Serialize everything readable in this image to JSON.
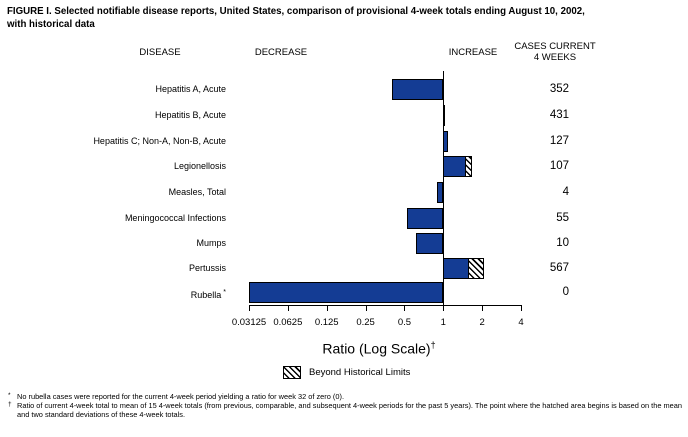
{
  "title": {
    "line1": "FIGURE I. Selected notifiable disease reports, United States, comparison of provisional 4-week totals ending August 10, 2002,",
    "line2": "with historical data"
  },
  "column_headers": {
    "disease": "DISEASE",
    "decrease": "DECREASE",
    "increase": "INCREASE",
    "cases_current_line1": "CASES CURRENT",
    "cases_current_line2": "4 WEEKS"
  },
  "chart_data": {
    "type": "bar",
    "orientation": "horizontal",
    "x_scale": "log2",
    "xlabel": "Ratio (Log Scale)",
    "xlabel_footnote_marker": "†",
    "xlim": [
      0.03125,
      4
    ],
    "baseline_ratio": 1,
    "tick_labels": [
      "0.03125",
      "0.0625",
      "0.125",
      "0.25",
      "0.5",
      "1",
      "2",
      "4"
    ],
    "bar_color": "#143C94",
    "grid": false,
    "rows": [
      {
        "disease": "Hepatitis A, Acute",
        "ratio": 0.4,
        "cases": "352",
        "beyond_limits": false
      },
      {
        "disease": "Hepatitis B, Acute",
        "ratio": 1.01,
        "cases": "431",
        "beyond_limits": false
      },
      {
        "disease": "Hepatitis C; Non-A, Non-B, Acute",
        "ratio": 1.08,
        "cases": "127",
        "beyond_limits": false
      },
      {
        "disease": "Legionellosis",
        "ratio": 1.68,
        "cases": "107",
        "beyond_limits": true,
        "hatch_from": 1.53
      },
      {
        "disease": "Measles, Total",
        "ratio": 0.9,
        "cases": "4",
        "beyond_limits": false
      },
      {
        "disease": "Meningococcal Infections",
        "ratio": 0.52,
        "cases": "55",
        "beyond_limits": false
      },
      {
        "disease": "Mumps",
        "ratio": 0.61,
        "cases": "10",
        "beyond_limits": false
      },
      {
        "disease": "Pertussis",
        "ratio": 2.05,
        "cases": "567",
        "beyond_limits": true,
        "hatch_from": 1.62
      },
      {
        "disease": "Rubella",
        "label_superscript": "*",
        "ratio": 0,
        "cases": "0",
        "beyond_limits": false
      }
    ],
    "legend": [
      {
        "label": "Beyond Historical Limits",
        "swatch": "hatched"
      }
    ]
  },
  "footnotes": [
    {
      "marker": "*",
      "text": "No rubella cases were reported for the current 4-week period yielding a ratio for week 32 of zero (0)."
    },
    {
      "marker": "†",
      "text": "Ratio of current 4-week total to mean of 15 4-week totals (from previous, comparable, and subsequent 4-week periods for the past 5 years). The point where the hatched area begins is based on the mean and two standard deviations of these 4-week totals."
    }
  ]
}
